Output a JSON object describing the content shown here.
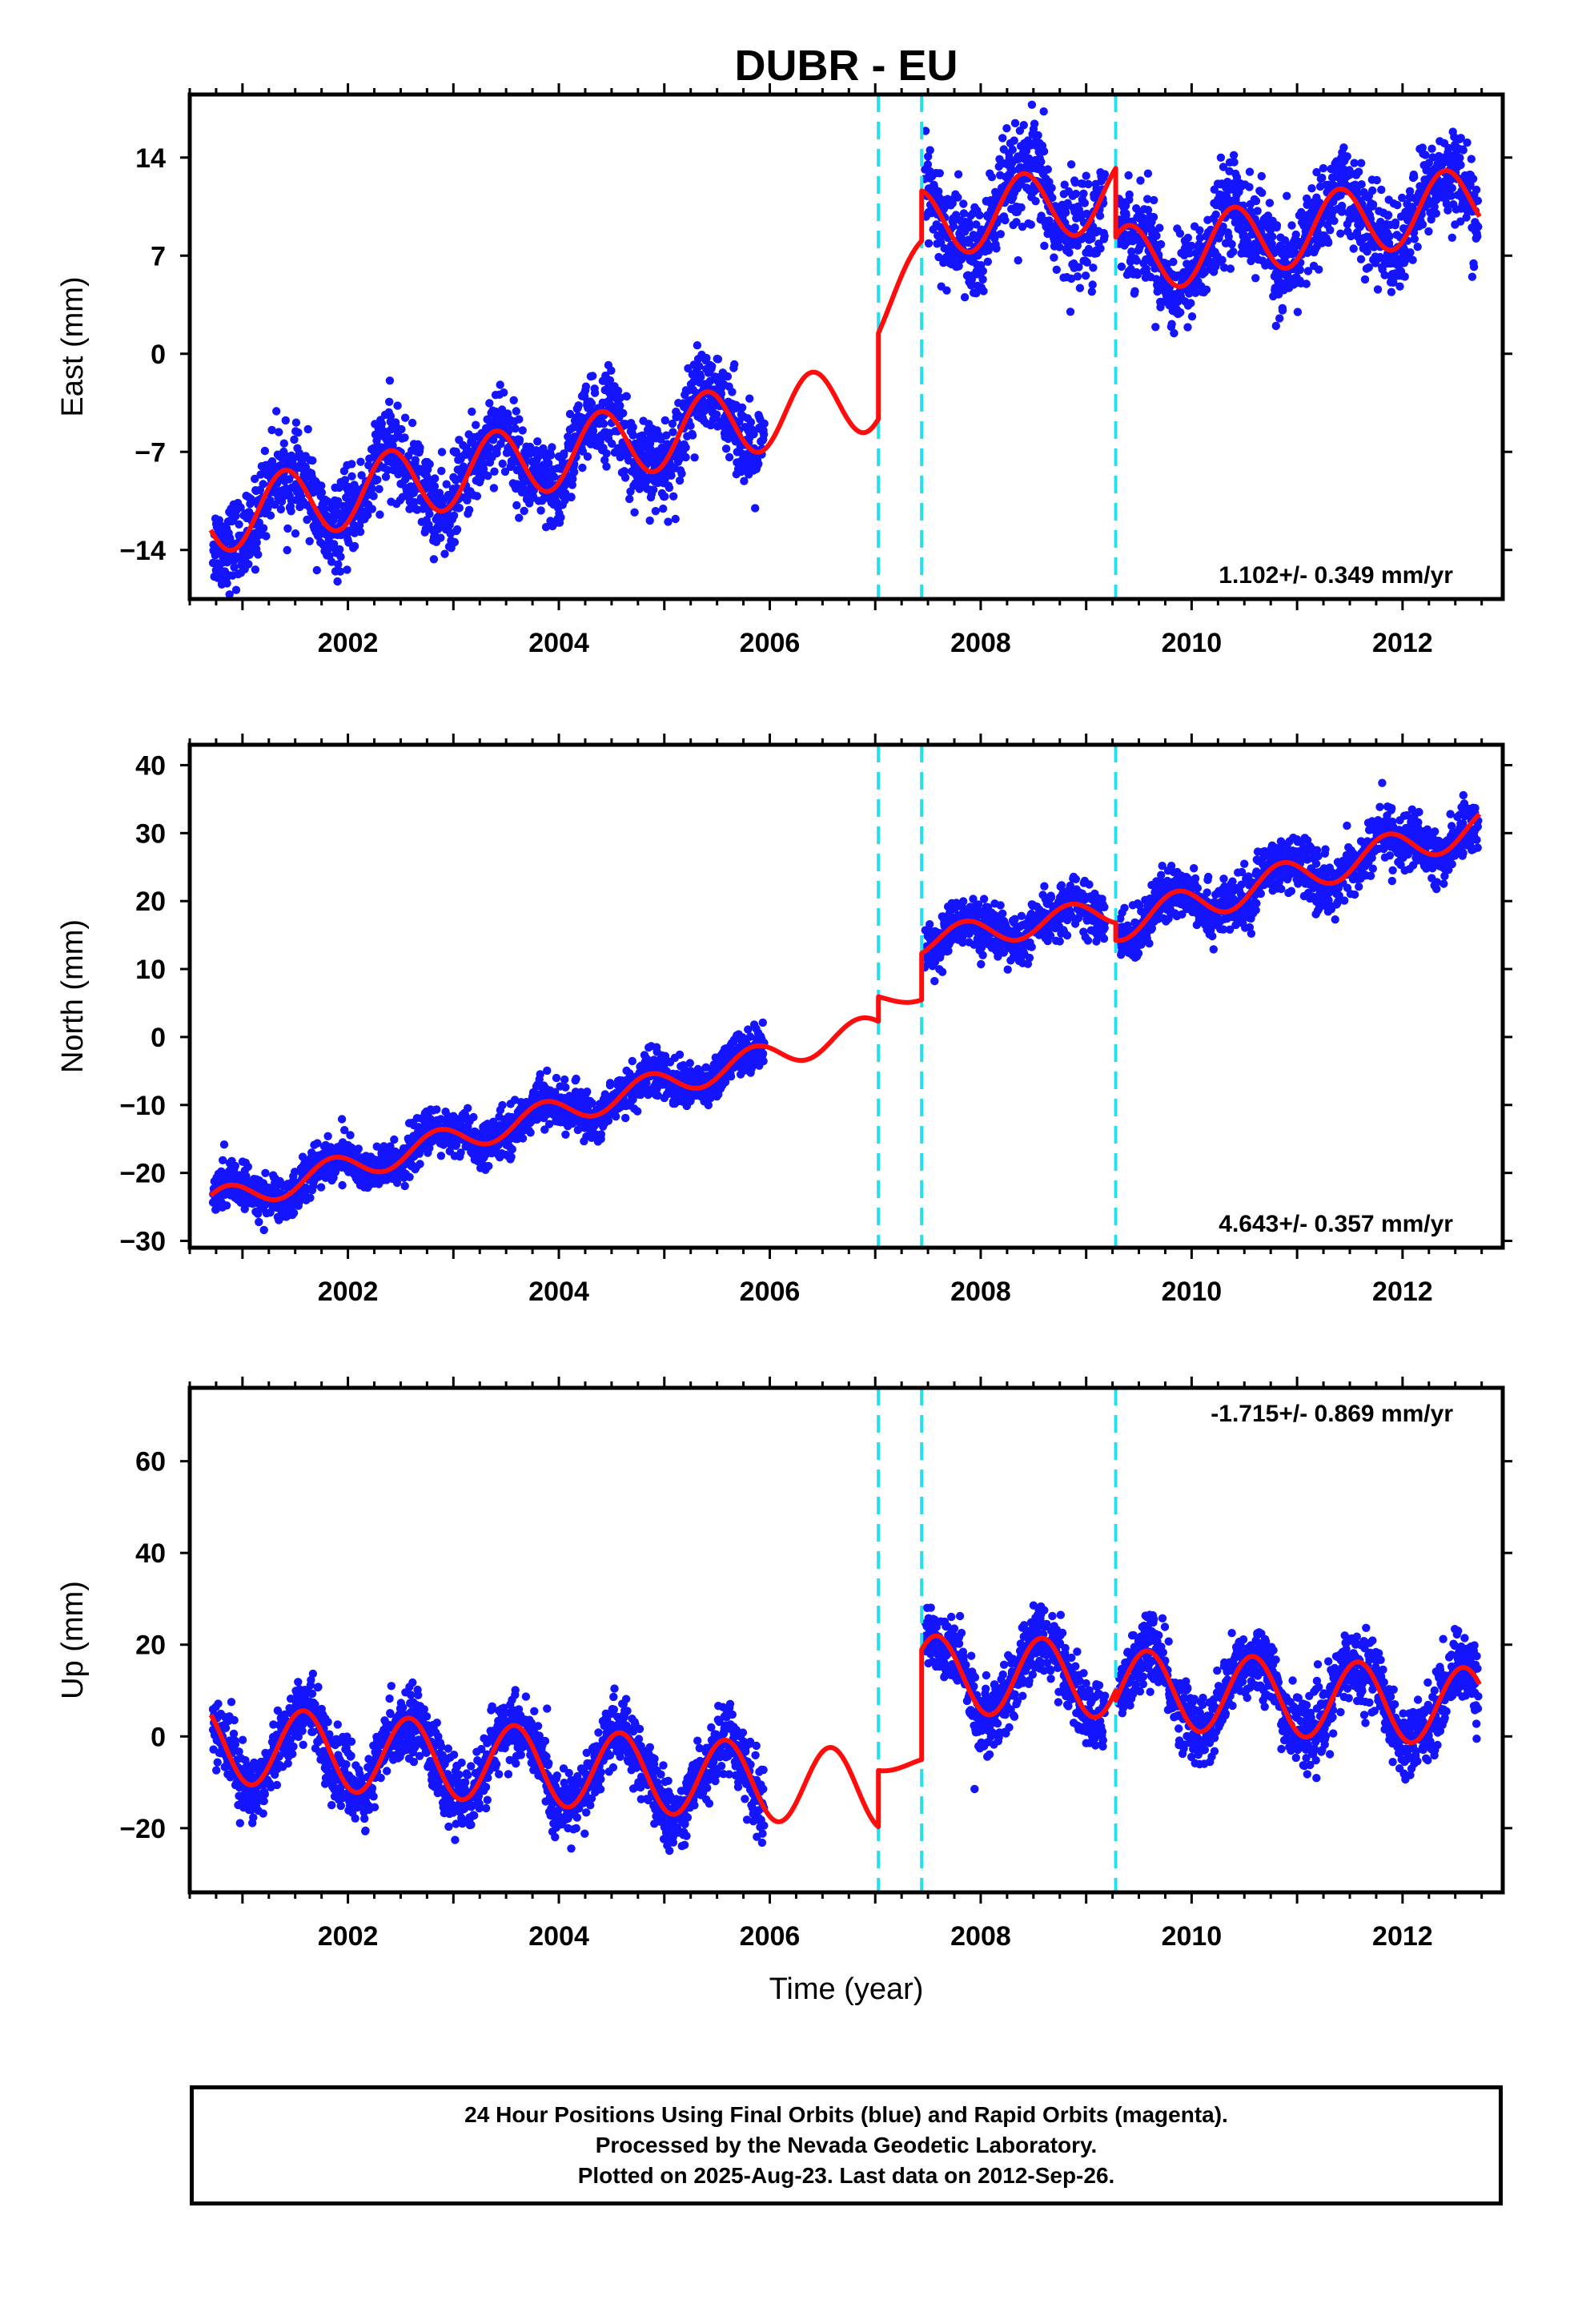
{
  "title": "DUBR - EU",
  "colors": {
    "data": "#1414ff",
    "model": "#ff0d0d",
    "offset": "#22e0f0"
  },
  "footer": {
    "line1": "24 Hour Positions Using Final Orbits (blue) and Rapid Orbits (magenta).",
    "line2": "Processed by the Nevada Geodetic Laboratory.",
    "line3": "Plotted on 2025-Aug-23. Last data on 2012-Sep-26."
  },
  "chart_data": [
    {
      "type": "scatter",
      "ylabel": "East (mm)",
      "xlabel": "",
      "xlim": [
        2000.5,
        2012.95
      ],
      "ylim": [
        -17.5,
        18.5
      ],
      "yticks": [
        -14,
        -7,
        0,
        7,
        14
      ],
      "xticks": [
        2002,
        2004,
        2006,
        2008,
        2010,
        2012
      ],
      "offsets": [
        2007.03,
        2007.44,
        2009.28
      ],
      "rate_text": "1.102+/- 0.349 mm/yr",
      "rate_position": "bottom-right",
      "model_segments": [
        {
          "x0": 2000.7,
          "x1": 2007.03,
          "a": -11.8,
          "b": 1.4,
          "amp": 2.5,
          "peak": 0.4
        },
        {
          "x0": 2007.03,
          "x1": 2007.44,
          "a": 2.5,
          "b": 10.0,
          "amp": 1.5,
          "peak": 0.4
        },
        {
          "x0": 2007.44,
          "x1": 2009.28,
          "a": 9.2,
          "b": 1.2,
          "amp": 2.5,
          "peak": 0.4
        },
        {
          "x0": 2009.28,
          "x1": 2012.73,
          "a": 6.5,
          "b": 1.3,
          "amp": 2.5,
          "peak": 0.4
        }
      ],
      "data_segments": [
        {
          "x0": 2000.72,
          "x1": 2005.95,
          "noise": 1.5
        },
        {
          "x0": 2007.47,
          "x1": 2009.18,
          "noise": 1.8
        },
        {
          "x0": 2009.31,
          "x1": 2012.72,
          "noise": 1.6
        }
      ]
    },
    {
      "type": "scatter",
      "ylabel": "North (mm)",
      "xlabel": "",
      "xlim": [
        2000.5,
        2012.95
      ],
      "ylim": [
        -31,
        43
      ],
      "yticks": [
        -30,
        -20,
        -10,
        0,
        10,
        20,
        30,
        40
      ],
      "xticks": [
        2002,
        2004,
        2006,
        2008,
        2010,
        2012
      ],
      "offsets": [
        2007.03,
        2007.44,
        2009.28
      ],
      "rate_text": "4.643+/- 0.357 mm/yr",
      "rate_position": "bottom-right",
      "model_segments": [
        {
          "x0": 2000.7,
          "x1": 2007.03,
          "a": -24.5,
          "b": 4.1,
          "amp": 2.0,
          "peak": 0.85
        },
        {
          "x0": 2007.03,
          "x1": 2007.44,
          "a": 5.5,
          "b": 2.0,
          "amp": 1.0,
          "peak": 0.85
        },
        {
          "x0": 2007.44,
          "x1": 2009.28,
          "a": 14.0,
          "b": 2.5,
          "amp": 2.0,
          "peak": 0.85
        },
        {
          "x0": 2009.28,
          "x1": 2012.73,
          "a": 16.5,
          "b": 4.2,
          "amp": 2.5,
          "peak": 0.85
        }
      ],
      "data_segments": [
        {
          "x0": 2000.72,
          "x1": 2005.95,
          "noise": 1.6
        },
        {
          "x0": 2007.47,
          "x1": 2009.18,
          "noise": 1.8
        },
        {
          "x0": 2009.31,
          "x1": 2012.72,
          "noise": 2.0
        }
      ]
    },
    {
      "type": "scatter",
      "ylabel": "Up (mm)",
      "xlabel": "Time (year)",
      "xlim": [
        2000.5,
        2012.95
      ],
      "ylim": [
        -34,
        76
      ],
      "yticks": [
        -20,
        0,
        20,
        40,
        60
      ],
      "xticks": [
        2002,
        2004,
        2006,
        2008,
        2010,
        2012
      ],
      "offsets": [
        2007.03,
        2007.44,
        2009.28
      ],
      "rate_text": "-1.715+/- 0.869 mm/yr",
      "rate_position": "top-right",
      "model_segments": [
        {
          "x0": 2000.7,
          "x1": 2007.03,
          "a": -1.5,
          "b": -1.6,
          "amp": 8.5,
          "peak": 0.58
        },
        {
          "x0": 2007.03,
          "x1": 2007.44,
          "a": -6.0,
          "b": 0.0,
          "amp": 1.5,
          "peak": 0.58
        },
        {
          "x0": 2007.44,
          "x1": 2009.28,
          "a": 13.5,
          "b": -0.5,
          "amp": 8.5,
          "peak": 0.58
        },
        {
          "x0": 2009.28,
          "x1": 2012.73,
          "a": 10.5,
          "b": -1.2,
          "amp": 8.5,
          "peak": 0.58
        }
      ],
      "data_segments": [
        {
          "x0": 2000.72,
          "x1": 2005.95,
          "noise": 3.6
        },
        {
          "x0": 2007.47,
          "x1": 2009.18,
          "noise": 3.8
        },
        {
          "x0": 2009.31,
          "x1": 2012.72,
          "noise": 3.8
        }
      ]
    }
  ]
}
